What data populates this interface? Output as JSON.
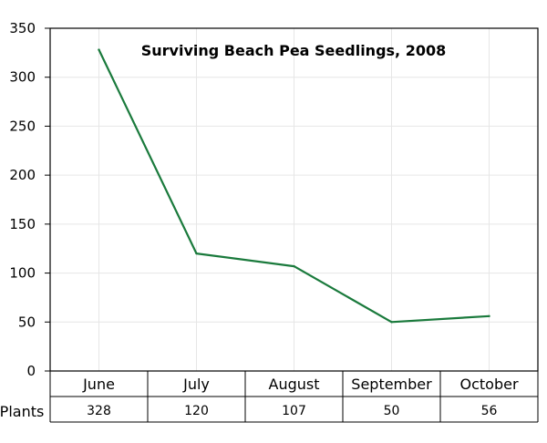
{
  "chart_data": {
    "type": "line",
    "title": "Surviving Beach Pea Seedlings, 2008",
    "xlabel": "",
    "ylabel": "",
    "categories": [
      "June",
      "July",
      "August",
      "September",
      "October"
    ],
    "series": [
      {
        "name": "Plants",
        "values": [
          328,
          120,
          107,
          50,
          56
        ],
        "color": "#1a7a3c"
      }
    ],
    "ylim": [
      0,
      350
    ],
    "yticks": [
      "0",
      "50",
      "100",
      "150",
      "200",
      "250",
      "300",
      "350"
    ],
    "grid": true,
    "legend": "none",
    "table": {
      "row_label": "Plants",
      "values": [
        "328",
        "120",
        "107",
        "50",
        "56"
      ]
    }
  }
}
